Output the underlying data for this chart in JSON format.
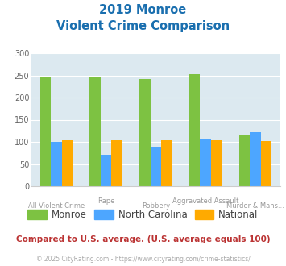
{
  "title_line1": "2019 Monroe",
  "title_line2": "Violent Crime Comparison",
  "categories": [
    "All Violent Crime",
    "Rape",
    "Robbery",
    "Aggravated Assault",
    "Murder & Mans..."
  ],
  "series": {
    "Monroe": [
      246,
      246,
      241,
      252,
      115
    ],
    "North Carolina": [
      100,
      71,
      90,
      105,
      122
    ],
    "National": [
      103,
      103,
      103,
      103,
      102
    ]
  },
  "colors": {
    "Monroe": "#7dc242",
    "North Carolina": "#4da6ff",
    "National": "#ffaa00"
  },
  "ylim": [
    0,
    300
  ],
  "yticks": [
    0,
    50,
    100,
    150,
    200,
    250,
    300
  ],
  "plot_bg": "#dce9f0",
  "title_color": "#1a6faf",
  "axis_label_color": "#999999",
  "legend_label_color": "#444444",
  "footer_text": "Compared to U.S. average. (U.S. average equals 100)",
  "footer_color": "#bb3333",
  "credit_text": "© 2025 CityRating.com - https://www.cityrating.com/crime-statistics/",
  "credit_color": "#aaaaaa"
}
